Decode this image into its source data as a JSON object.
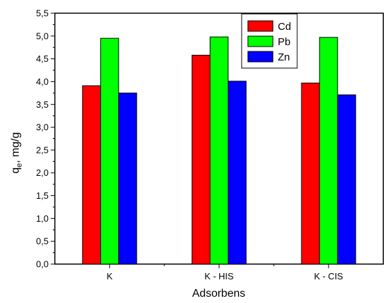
{
  "chart_data": {
    "type": "bar",
    "xlabel": "Adsorbens",
    "ylabel": "q",
    "ylabel_subscript": "e",
    "ylabel_suffix": ", mg/g",
    "categories": [
      "K",
      "K - HIS",
      "K - CIS"
    ],
    "ylim": [
      0.0,
      5.5
    ],
    "yticks": [
      "0,0",
      "0,5",
      "1,0",
      "1,5",
      "2,0",
      "2,5",
      "3,0",
      "3,5",
      "4,0",
      "4,5",
      "5,0",
      "5,5"
    ],
    "series": [
      {
        "name": "Cd",
        "color": "#ff0000",
        "values": [
          3.91,
          4.58,
          3.97
        ]
      },
      {
        "name": "Pb",
        "color": "#00ff00",
        "values": [
          4.95,
          4.98,
          4.97
        ]
      },
      {
        "name": "Zn",
        "color": "#0000ff",
        "values": [
          3.75,
          4.01,
          3.71
        ]
      }
    ],
    "legend_position": "top-right",
    "grid": false
  }
}
